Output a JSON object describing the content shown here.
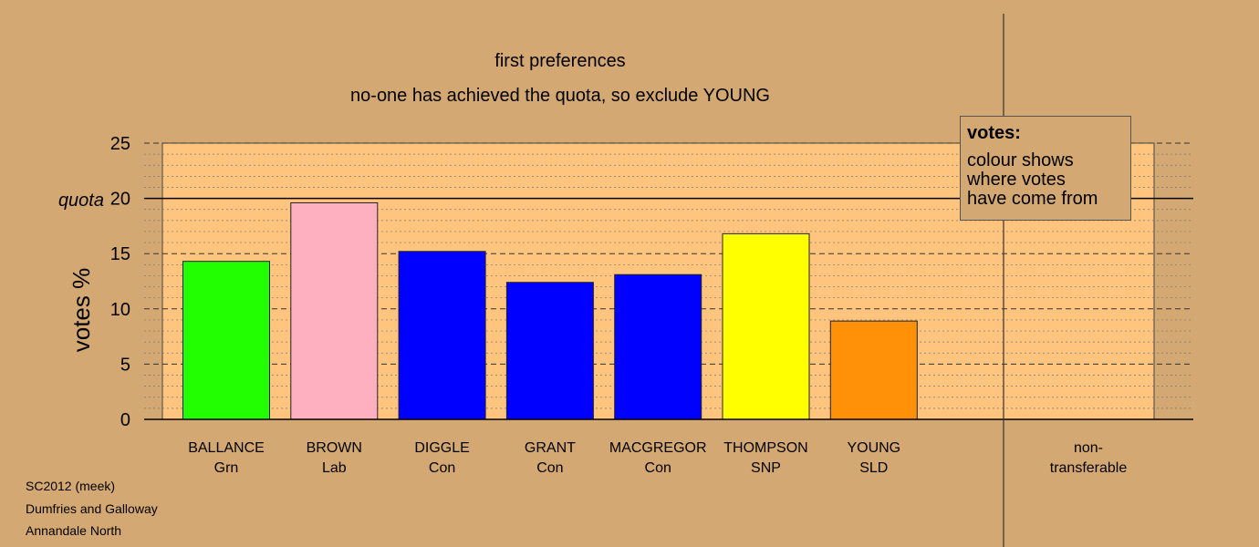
{
  "chart_data": {
    "type": "bar",
    "title": "first preferences",
    "subtitle": "no-one has achieved the quota, so exclude YOUNG",
    "ylabel": "votes %",
    "ylim": [
      0,
      25
    ],
    "yticks": [
      "0",
      "5",
      "10",
      "15",
      "20",
      "25"
    ],
    "quota": {
      "label": "quota",
      "value": 20
    },
    "categories": [
      {
        "name": "BALLANCE",
        "party": "Grn",
        "value": 14.3,
        "color": "#22ff00"
      },
      {
        "name": "BROWN",
        "party": "Lab",
        "value": 19.6,
        "color": "#ffb0c0"
      },
      {
        "name": "DIGGLE",
        "party": "Con",
        "value": 15.2,
        "color": "#0000ff"
      },
      {
        "name": "GRANT",
        "party": "Con",
        "value": 12.4,
        "color": "#0000ff"
      },
      {
        "name": "MACGREGOR",
        "party": "Con",
        "value": 13.1,
        "color": "#0000ff"
      },
      {
        "name": "THOMPSON",
        "party": "SNP",
        "value": 16.8,
        "color": "#ffff00"
      },
      {
        "name": "YOUNG",
        "party": "SLD",
        "value": 8.9,
        "color": "#ff9108"
      }
    ],
    "nontransferable": {
      "label_line1": "non-",
      "label_line2": "transferable",
      "value": 0
    },
    "colors": {
      "background": "#d4a872",
      "plot_area": "#ffc47e"
    }
  },
  "legend": {
    "title": "votes:",
    "lines": [
      "colour shows",
      "where votes",
      "have come from"
    ]
  },
  "footer": {
    "line1": "SC2012 (meek)",
    "line2": "Dumfries and Galloway",
    "line3": "Annandale North"
  }
}
